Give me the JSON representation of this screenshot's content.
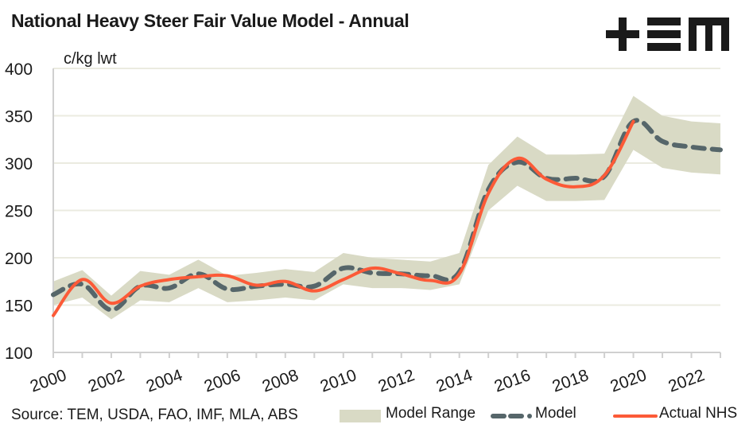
{
  "title": "National Heavy Steer Fair Value Model - Annual",
  "logo_text": "TEM",
  "source": "Source: TEM, USDA, FAO, IMF, MLA, ABS",
  "colors": {
    "range": "#d9dac5",
    "model": "#56666a",
    "actual": "#fc5a37",
    "grid": "#ebebe0",
    "axis": "#d0d0d0"
  },
  "chart_data": {
    "type": "line",
    "title": "National Heavy Steer Fair Value Model - Annual",
    "ylabel": "c/kg lwt",
    "xlabel": "",
    "ylim": [
      100,
      400
    ],
    "yticks": [
      100,
      150,
      200,
      250,
      300,
      350,
      400
    ],
    "xticks": [
      "2000",
      "2002",
      "2004",
      "2006",
      "2008",
      "2010",
      "2012",
      "2014",
      "2016",
      "2018",
      "2020",
      "2022"
    ],
    "grid": true,
    "legend_position": "bottom",
    "x": [
      2000,
      2001,
      2002,
      2003,
      2004,
      2005,
      2006,
      2007,
      2008,
      2009,
      2010,
      2011,
      2012,
      2013,
      2014,
      2015,
      2016,
      2017,
      2018,
      2019,
      2020,
      2021,
      2022,
      2023
    ],
    "series": [
      {
        "name": "Model Range",
        "kind": "band",
        "lower": [
          150,
          158,
          135,
          155,
          153,
          168,
          153,
          155,
          158,
          155,
          172,
          168,
          168,
          166,
          172,
          250,
          276,
          260,
          260,
          261,
          314,
          295,
          290,
          288
        ],
        "upper": [
          175,
          187,
          160,
          186,
          182,
          198,
          181,
          184,
          188,
          185,
          205,
          200,
          198,
          196,
          205,
          298,
          328,
          309,
          309,
          310,
          371,
          350,
          344,
          342
        ]
      },
      {
        "name": "Model",
        "kind": "dashed-line",
        "values": [
          161,
          172,
          145,
          170,
          168,
          183,
          167,
          170,
          172,
          170,
          189,
          184,
          183,
          181,
          185,
          272,
          301,
          284,
          284,
          286,
          344,
          323,
          317,
          314
        ]
      },
      {
        "name": "Actual NHS",
        "kind": "smooth-line",
        "values": [
          139,
          177,
          152,
          170,
          177,
          180,
          181,
          171,
          175,
          165,
          177,
          189,
          183,
          176,
          183,
          268,
          305,
          283,
          275,
          287,
          344,
          null,
          null,
          null
        ]
      }
    ]
  },
  "legend": [
    {
      "label": "Model Range"
    },
    {
      "label": "Model"
    },
    {
      "label": "Actual NHS"
    }
  ]
}
